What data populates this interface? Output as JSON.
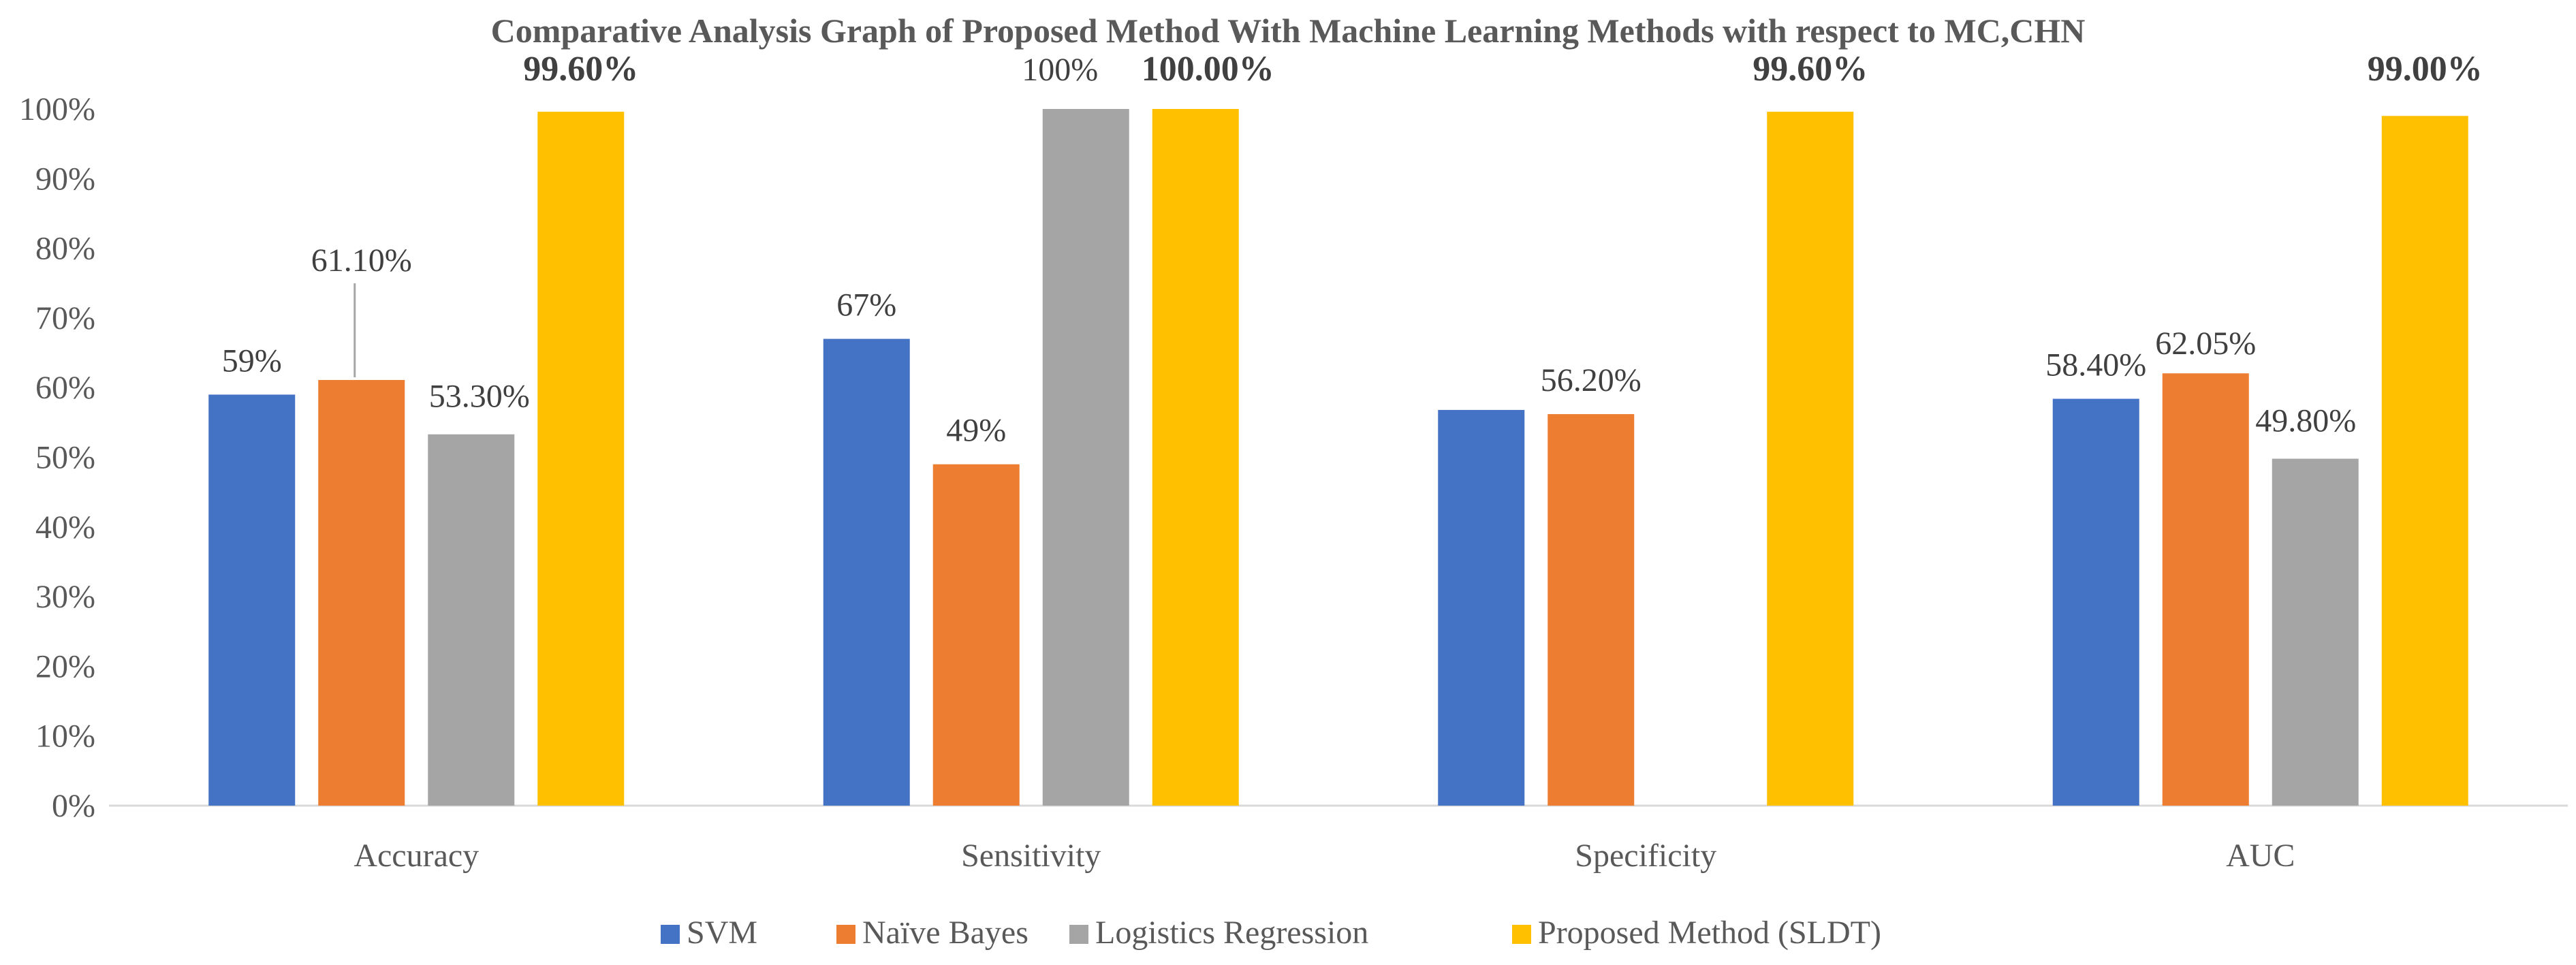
{
  "chart_data": {
    "type": "bar",
    "title": "Comparative Analysis Graph of Proposed Method With Machine Learning  Methods with respect to  MC,CHN",
    "categories": [
      "Accuracy",
      "Sensitivity",
      "Specificity",
      "AUC"
    ],
    "ylim": [
      0,
      100
    ],
    "y_ticks": [
      "0%",
      "10%",
      "20%",
      "30%",
      "40%",
      "50%",
      "60%",
      "70%",
      "80%",
      "90%",
      "100%"
    ],
    "grid": false,
    "legend_position": "bottom",
    "series": [
      {
        "name": "SVM",
        "color": "#4472C4",
        "values": [
          59,
          67,
          56.8,
          58.4
        ],
        "labels": [
          "59%",
          "67%",
          "",
          "58.40%"
        ],
        "label_bold": false
      },
      {
        "name": "Naïve Bayes",
        "color": "#ED7D31",
        "values": [
          61.1,
          49,
          56.2,
          62.05
        ],
        "labels": [
          "61.10%",
          "49%",
          "56.20%",
          "62.05%"
        ],
        "label_bold": false
      },
      {
        "name": "Logistics Regression",
        "color": "#A5A5A5",
        "values": [
          53.3,
          100,
          0,
          49.8
        ],
        "labels": [
          "53.30%",
          "100%",
          "",
          "49.80%"
        ],
        "label_bold": false
      },
      {
        "name": "Proposed Method (SLDT)",
        "color": "#FFC000",
        "values": [
          99.6,
          100,
          99.6,
          99.0
        ],
        "labels": [
          "99.60%",
          "100.00%",
          "99.60%",
          "99.00%"
        ],
        "label_bold": true
      }
    ]
  }
}
